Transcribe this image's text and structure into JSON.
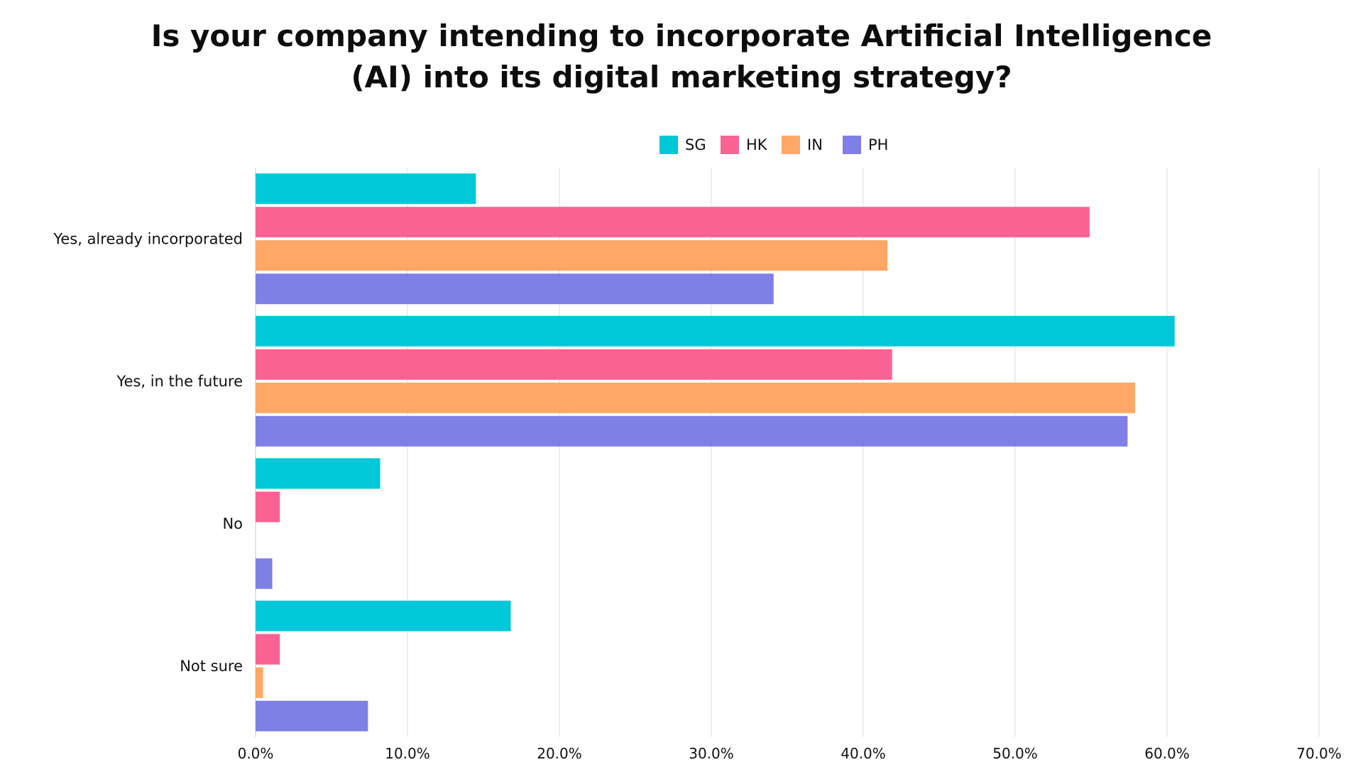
{
  "chart_data": {
    "type": "bar",
    "orientation": "horizontal",
    "title_lines": [
      "Is your company intending to incorporate Artificial Intelligence",
      "(AI) into its digital marketing strategy?"
    ],
    "categories": [
      "Yes, already incorporated",
      "Yes, in the future",
      "No",
      "Not sure"
    ],
    "series": [
      {
        "name": "SG",
        "color": "#00C8D8",
        "values": [
          14.5,
          60.5,
          8.2,
          16.8
        ]
      },
      {
        "name": "HK",
        "color": "#F96394",
        "values": [
          54.9,
          41.9,
          1.6,
          1.6
        ]
      },
      {
        "name": "IN",
        "color": "#FFA766",
        "values": [
          41.6,
          57.9,
          0.0,
          0.5
        ]
      },
      {
        "name": "PH",
        "color": "#7F7FE6",
        "values": [
          34.1,
          57.4,
          1.1,
          7.4
        ]
      }
    ],
    "xlim": [
      0,
      70
    ],
    "xticks": [
      "0.0%",
      "10.0%",
      "20.0%",
      "30.0%",
      "40.0%",
      "50.0%",
      "60.0%",
      "70.0%"
    ],
    "xtick_values": [
      0,
      10,
      20,
      30,
      40,
      50,
      60,
      70
    ],
    "xlabel": "",
    "ylabel": "",
    "grid": true,
    "legend_position": "top-center"
  }
}
